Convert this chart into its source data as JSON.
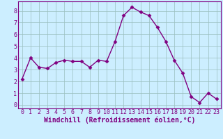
{
  "x": [
    0,
    1,
    2,
    3,
    4,
    5,
    6,
    7,
    8,
    9,
    10,
    11,
    12,
    13,
    14,
    15,
    16,
    17,
    18,
    19,
    20,
    21,
    22,
    23
  ],
  "y": [
    2.2,
    4.0,
    3.2,
    3.1,
    3.6,
    3.8,
    3.7,
    3.7,
    3.2,
    3.8,
    3.7,
    5.4,
    7.6,
    8.3,
    7.9,
    7.6,
    6.6,
    5.4,
    3.8,
    2.7,
    0.7,
    0.2,
    1.0,
    0.5
  ],
  "line_color": "#800080",
  "marker": "D",
  "marker_size": 2.5,
  "bg_color": "#cceeff",
  "grid_color": "#9bbfbf",
  "xlabel": "Windchill (Refroidissement éolien,°C)",
  "ylabel_ticks": [
    0,
    1,
    2,
    3,
    4,
    5,
    6,
    7,
    8
  ],
  "xlim": [
    -0.5,
    23.5
  ],
  "ylim": [
    -0.3,
    8.8
  ],
  "xticks": [
    0,
    1,
    2,
    3,
    4,
    5,
    6,
    7,
    8,
    9,
    10,
    11,
    12,
    13,
    14,
    15,
    16,
    17,
    18,
    19,
    20,
    21,
    22,
    23
  ],
  "tick_fontsize": 6,
  "xlabel_fontsize": 7,
  "linewidth": 1.0
}
